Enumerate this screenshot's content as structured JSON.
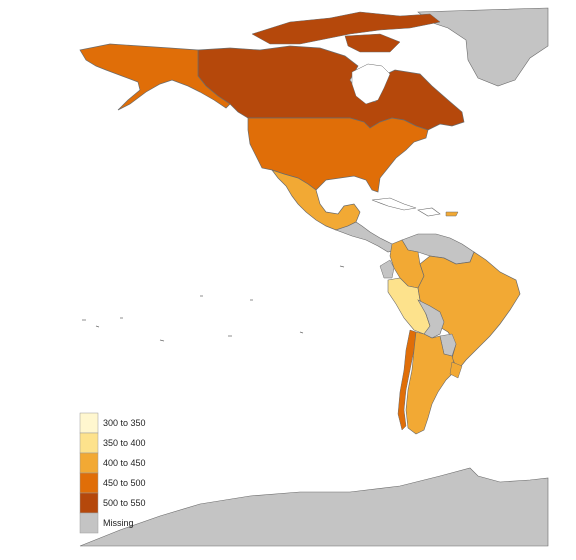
{
  "map": {
    "projection": "equirectangular",
    "region": "Americas",
    "colors": {
      "300_350": "#fff7cf",
      "350_400": "#fde28c",
      "400_450": "#f2a934",
      "450_500": "#e06e08",
      "500_550": "#b5480b",
      "missing": "#c4c4c4",
      "border": "#6b6b6b"
    },
    "legend": {
      "items": [
        {
          "label": "300 to 350",
          "color": "#fff7cf"
        },
        {
          "label": "350 to 400",
          "color": "#fde28c"
        },
        {
          "label": "400 to 450",
          "color": "#f2a934"
        },
        {
          "label": "450 to 500",
          "color": "#e06e08"
        },
        {
          "label": "500 to 550",
          "color": "#b5480b"
        },
        {
          "label": "Missing",
          "color": "#c4c4c4"
        }
      ]
    },
    "regions": [
      {
        "name": "Canada",
        "bin": "500 to 550"
      },
      {
        "name": "Alaska",
        "bin": "450 to 500"
      },
      {
        "name": "United States",
        "bin": "450 to 500"
      },
      {
        "name": "Mexico",
        "bin": "400 to 450"
      },
      {
        "name": "Greenland",
        "bin": "Missing"
      },
      {
        "name": "Antarctica",
        "bin": "Missing"
      },
      {
        "name": "Central America",
        "bin": "Missing"
      },
      {
        "name": "Colombia",
        "bin": "400 to 450"
      },
      {
        "name": "Venezuela",
        "bin": "Missing"
      },
      {
        "name": "Peru",
        "bin": "350 to 400"
      },
      {
        "name": "Brazil",
        "bin": "400 to 450"
      },
      {
        "name": "Bolivia",
        "bin": "Missing"
      },
      {
        "name": "Chile",
        "bin": "450 to 500"
      },
      {
        "name": "Argentina",
        "bin": "400 to 450"
      },
      {
        "name": "Uruguay",
        "bin": "400 to 450"
      },
      {
        "name": "Paraguay",
        "bin": "Missing"
      }
    ]
  }
}
